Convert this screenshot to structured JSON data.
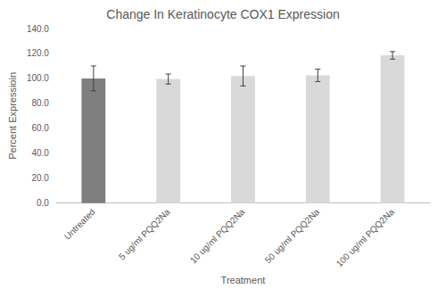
{
  "chart_data": {
    "type": "bar",
    "title": "Change In Keratinocyte COX1 Expression",
    "x_label": "Treatment",
    "y_label": "Percent Expressioin",
    "categories": [
      "Untreated",
      "5 ug/ml PQQ2Na",
      "10 ug/ml PQQ2Na",
      "50 ug/ml PQQ2Na",
      "100 ug/ml PQQ2Na"
    ],
    "values": [
      100.0,
      99.5,
      102.0,
      102.5,
      118.5
    ],
    "errors": [
      10.0,
      4.0,
      8.0,
      5.0,
      3.0
    ],
    "colors": [
      "#7f7f7f",
      "#d9d9d9",
      "#d9d9d9",
      "#d9d9d9",
      "#d9d9d9"
    ],
    "ylim": [
      0,
      140
    ],
    "yticks": [
      {
        "value": 0,
        "label": "0.0"
      },
      {
        "value": 20,
        "label": "20.0"
      },
      {
        "value": 40,
        "label": "40.0"
      },
      {
        "value": 60,
        "label": "60.0"
      },
      {
        "value": 80,
        "label": "80.0"
      },
      {
        "value": 100,
        "label": "100.0"
      },
      {
        "value": 120,
        "label": "120.0"
      },
      {
        "value": 140,
        "label": "140.0"
      }
    ],
    "grid": false
  }
}
